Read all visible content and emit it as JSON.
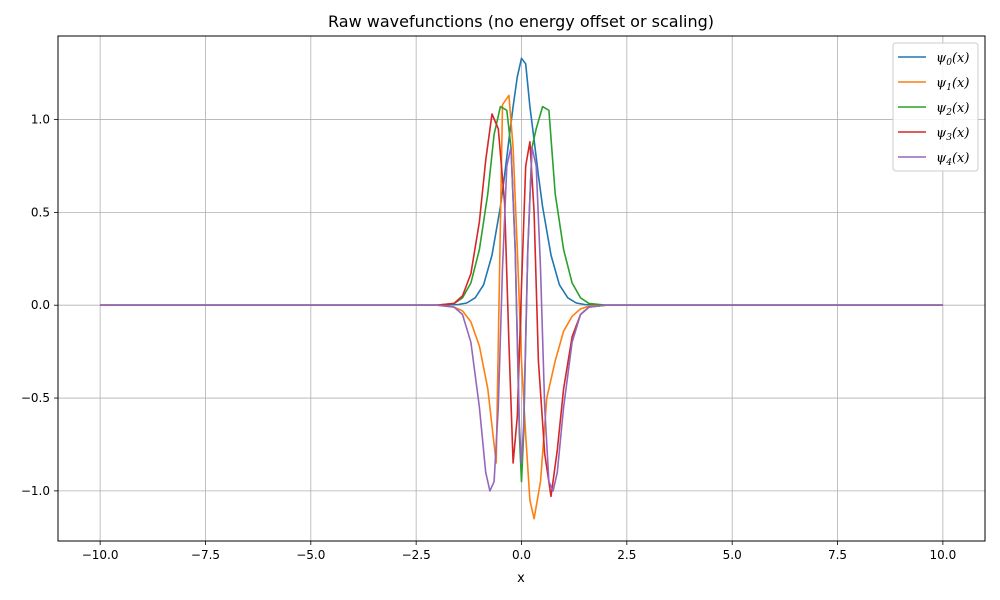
{
  "chart_data": {
    "type": "line",
    "title": "Raw wavefunctions (no energy offset or scaling)",
    "xlabel": "x",
    "ylabel": "",
    "xlim": [
      -11.0,
      11.0
    ],
    "ylim": [
      -1.27,
      1.45
    ],
    "xticks": [
      -10.0,
      -7.5,
      -5.0,
      -2.5,
      0.0,
      2.5,
      5.0,
      7.5,
      10.0
    ],
    "xtick_labels": [
      "−10.0",
      "−7.5",
      "−5.0",
      "−2.5",
      "0.0",
      "2.5",
      "5.0",
      "7.5",
      "10.0"
    ],
    "yticks": [
      -1.0,
      -0.5,
      0.0,
      0.5,
      1.0
    ],
    "ytick_labels": [
      "−1.0",
      "−0.5",
      "0.0",
      "0.5",
      "1.0"
    ],
    "grid": true,
    "legend_position": "top-right",
    "series": [
      {
        "name": "ψ0(x)",
        "sub": "0",
        "color": "#1f77b4",
        "x": [
          -10,
          -2.5,
          -2.0,
          -1.5,
          -1.3,
          -1.1,
          -0.9,
          -0.7,
          -0.5,
          -0.4,
          -0.3,
          -0.2,
          -0.1,
          0.0,
          0.1,
          0.2,
          0.3,
          0.4,
          0.5,
          0.7,
          0.9,
          1.1,
          1.3,
          1.5,
          2.0,
          2.5,
          10
        ],
        "y": [
          0,
          0,
          0,
          0.004,
          0.012,
          0.04,
          0.11,
          0.27,
          0.53,
          0.7,
          0.89,
          1.07,
          1.23,
          1.33,
          1.3,
          1.07,
          0.89,
          0.7,
          0.53,
          0.27,
          0.11,
          0.04,
          0.012,
          0.004,
          0,
          0,
          0
        ]
      },
      {
        "name": "ψ1(x)",
        "sub": "1",
        "color": "#ff7f0e",
        "x": [
          -10,
          -2.5,
          -2.0,
          -1.6,
          -1.4,
          -1.2,
          -1.0,
          -0.8,
          -0.6,
          -0.45,
          -0.3,
          -0.2,
          -0.1,
          0.0,
          0.1,
          0.2,
          0.3,
          0.45,
          0.6,
          0.8,
          1.0,
          1.2,
          1.4,
          1.6,
          2.0,
          2.5,
          10
        ],
        "y": [
          0,
          0,
          0,
          -0.01,
          -0.03,
          -0.09,
          -0.22,
          -0.45,
          -0.85,
          1.08,
          1.13,
          0.85,
          0.3,
          -0.3,
          -0.7,
          -1.05,
          -1.15,
          -0.95,
          -0.5,
          -0.3,
          -0.14,
          -0.06,
          -0.02,
          -0.005,
          0,
          0,
          0
        ]
      },
      {
        "name": "ψ2(x)",
        "sub": "2",
        "color": "#2ca02c",
        "x": [
          -10,
          -2.5,
          -2.0,
          -1.6,
          -1.4,
          -1.2,
          -1.0,
          -0.8,
          -0.65,
          -0.5,
          -0.35,
          -0.25,
          -0.15,
          -0.05,
          0.0,
          0.05,
          0.15,
          0.25,
          0.35,
          0.5,
          0.65,
          0.8,
          1.0,
          1.2,
          1.4,
          1.6,
          2.0,
          2.5,
          10
        ],
        "y": [
          0,
          0,
          0,
          0.01,
          0.04,
          0.12,
          0.3,
          0.6,
          0.92,
          1.07,
          1.05,
          0.85,
          0.3,
          -0.7,
          -0.95,
          -0.7,
          0.3,
          0.85,
          0.95,
          1.07,
          1.05,
          0.6,
          0.3,
          0.12,
          0.04,
          0.01,
          0,
          0,
          0
        ]
      },
      {
        "name": "ψ3(x)",
        "sub": "3",
        "color": "#d62728",
        "x": [
          -10,
          -2.5,
          -2.0,
          -1.6,
          -1.4,
          -1.2,
          -1.0,
          -0.85,
          -0.7,
          -0.55,
          -0.4,
          -0.3,
          -0.2,
          -0.1,
          0.0,
          0.1,
          0.2,
          0.3,
          0.4,
          0.55,
          0.7,
          0.85,
          1.0,
          1.2,
          1.4,
          1.6,
          2.0,
          2.5,
          10
        ],
        "y": [
          0,
          0,
          0,
          0.01,
          0.05,
          0.17,
          0.45,
          0.78,
          1.03,
          0.95,
          0.55,
          -0.2,
          -0.85,
          -0.6,
          0.1,
          0.75,
          0.88,
          0.5,
          -0.3,
          -0.8,
          -1.03,
          -0.78,
          -0.45,
          -0.17,
          -0.05,
          -0.01,
          0,
          0,
          0
        ]
      },
      {
        "name": "ψ4(x)",
        "sub": "4",
        "color": "#9467bd",
        "x": [
          -10,
          -2.5,
          -2.0,
          -1.6,
          -1.4,
          -1.2,
          -1.0,
          -0.85,
          -0.75,
          -0.65,
          -0.55,
          -0.45,
          -0.35,
          -0.25,
          -0.15,
          -0.05,
          0.0,
          0.05,
          0.15,
          0.25,
          0.35,
          0.45,
          0.55,
          0.65,
          0.75,
          0.85,
          1.0,
          1.2,
          1.4,
          1.6,
          2.0,
          2.5,
          10
        ],
        "y": [
          0,
          0,
          0,
          -0.01,
          -0.05,
          -0.2,
          -0.55,
          -0.9,
          -1.0,
          -0.95,
          -0.55,
          0.2,
          0.75,
          0.85,
          0.3,
          -0.65,
          -0.85,
          -0.65,
          0.3,
          0.85,
          0.75,
          0.2,
          -0.55,
          -0.95,
          -1.0,
          -0.9,
          -0.55,
          -0.2,
          -0.05,
          -0.01,
          0,
          0,
          0
        ]
      }
    ]
  }
}
